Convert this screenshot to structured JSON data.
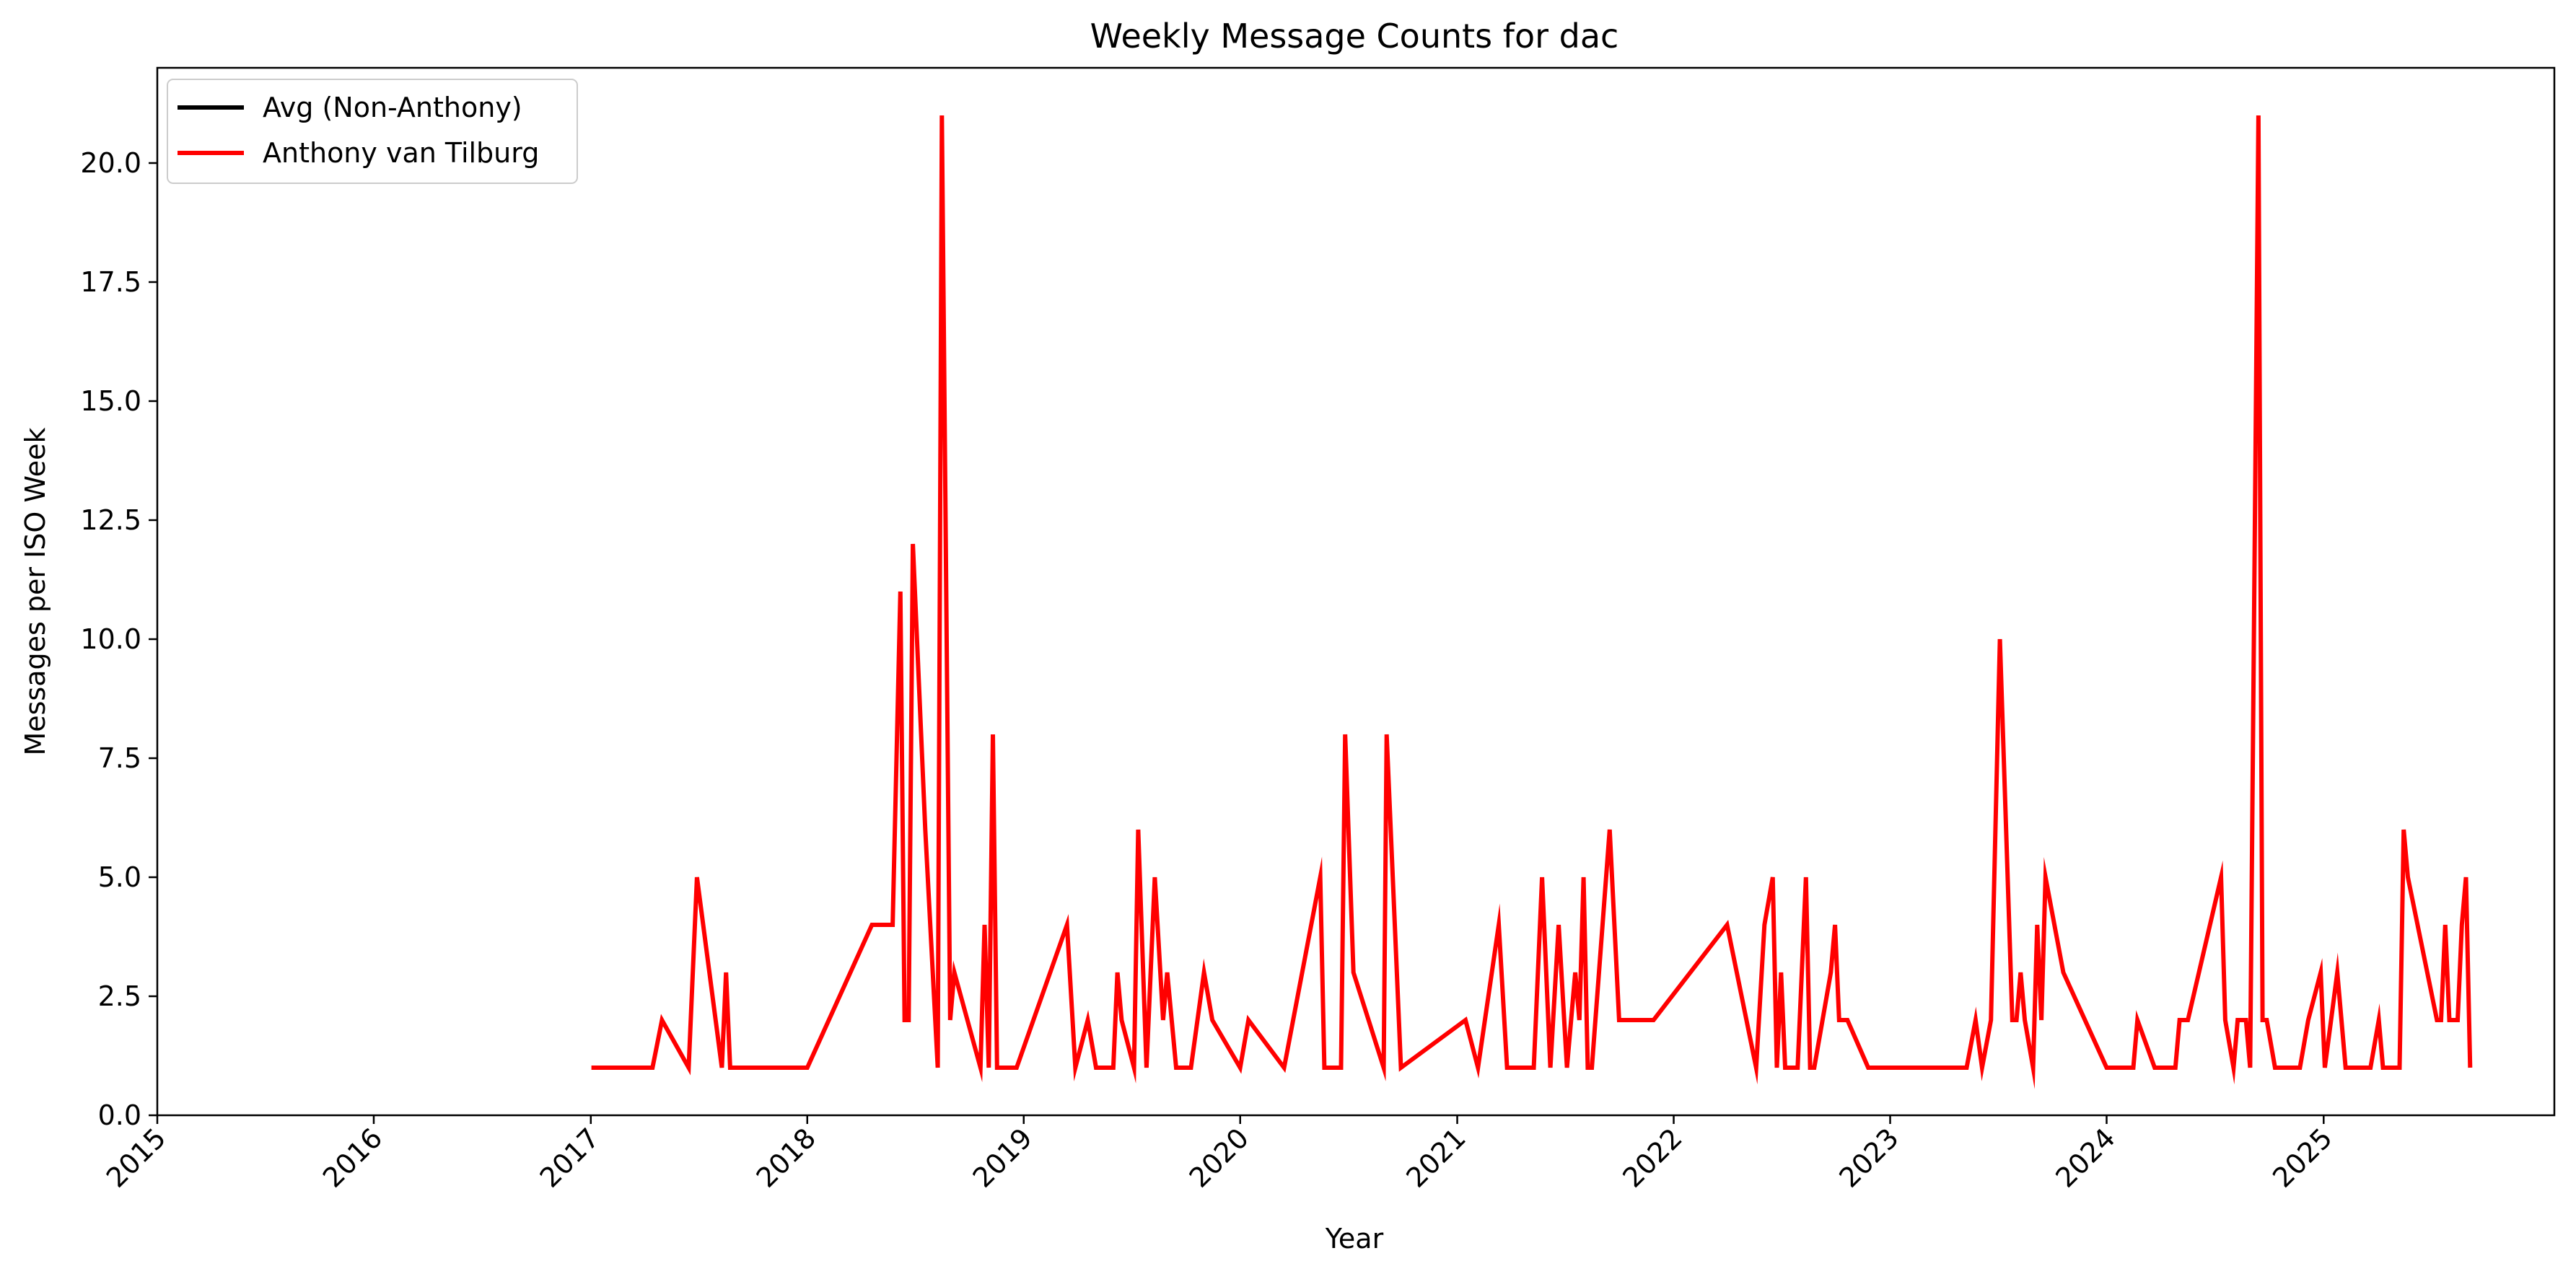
{
  "chart_data": {
    "type": "line",
    "title": "Weekly Message Counts for dac",
    "xlabel": "Year",
    "ylabel": "Messages per ISO Week",
    "xlim": [
      "2015-01-01",
      "2026-01-25"
    ],
    "ylim": [
      0,
      22
    ],
    "x_ticks": [
      "2015",
      "2016",
      "2017",
      "2018",
      "2019",
      "2020",
      "2021",
      "2022",
      "2023",
      "2024",
      "2025"
    ],
    "y_ticks": [
      "0.0",
      "2.5",
      "5.0",
      "7.5",
      "10.0",
      "12.5",
      "15.0",
      "17.5",
      "20.0"
    ],
    "grid": false,
    "legend_position": "upper-left",
    "legend": [
      {
        "name": "Avg (Non-Anthony)",
        "color": "#000000"
      },
      {
        "name": "Anthony van Tilburg",
        "color": "#ff0000"
      }
    ],
    "series": [
      {
        "name": "Avg (Non-Anthony)",
        "color": "#000000",
        "points": []
      },
      {
        "name": "Anthony van Tilburg",
        "color": "#ff0000",
        "points": [
          [
            "2017-01-02",
            1
          ],
          [
            "2017-04-15",
            1
          ],
          [
            "2017-05-01",
            2
          ],
          [
            "2017-06-15",
            1
          ],
          [
            "2017-06-29",
            5
          ],
          [
            "2017-08-10",
            1
          ],
          [
            "2017-08-17",
            3
          ],
          [
            "2017-08-24",
            1
          ],
          [
            "2018-01-01",
            1
          ],
          [
            "2018-04-20",
            4
          ],
          [
            "2018-05-25",
            4
          ],
          [
            "2018-06-07",
            11
          ],
          [
            "2018-06-14",
            2
          ],
          [
            "2018-06-21",
            2
          ],
          [
            "2018-06-28",
            12
          ],
          [
            "2018-07-19",
            6
          ],
          [
            "2018-08-09",
            1
          ],
          [
            "2018-08-16",
            21
          ],
          [
            "2018-08-30",
            2
          ],
          [
            "2018-09-06",
            3
          ],
          [
            "2018-10-20",
            1
          ],
          [
            "2018-10-27",
            4
          ],
          [
            "2018-11-03",
            1
          ],
          [
            "2018-11-10",
            8
          ],
          [
            "2018-11-17",
            1
          ],
          [
            "2018-12-20",
            1
          ],
          [
            "2019-03-15",
            4
          ],
          [
            "2019-03-29",
            1
          ],
          [
            "2019-04-19",
            2
          ],
          [
            "2019-05-03",
            1
          ],
          [
            "2019-06-01",
            1
          ],
          [
            "2019-06-08",
            3
          ],
          [
            "2019-06-15",
            2
          ],
          [
            "2019-07-06",
            1
          ],
          [
            "2019-07-13",
            6
          ],
          [
            "2019-07-27",
            1
          ],
          [
            "2019-08-10",
            5
          ],
          [
            "2019-08-24",
            2
          ],
          [
            "2019-08-31",
            3
          ],
          [
            "2019-09-15",
            1
          ],
          [
            "2019-10-10",
            1
          ],
          [
            "2019-11-01",
            3
          ],
          [
            "2019-11-15",
            2
          ],
          [
            "2020-01-01",
            1
          ],
          [
            "2020-01-15",
            2
          ],
          [
            "2020-03-15",
            1
          ],
          [
            "2020-05-15",
            5
          ],
          [
            "2020-05-22",
            1
          ],
          [
            "2020-06-19",
            1
          ],
          [
            "2020-06-26",
            8
          ],
          [
            "2020-07-10",
            3
          ],
          [
            "2020-08-30",
            1
          ],
          [
            "2020-09-04",
            8
          ],
          [
            "2020-09-28",
            1
          ],
          [
            "2021-01-15",
            2
          ],
          [
            "2021-02-05",
            1
          ],
          [
            "2021-03-12",
            4
          ],
          [
            "2021-03-26",
            1
          ],
          [
            "2021-05-10",
            1
          ],
          [
            "2021-05-24",
            5
          ],
          [
            "2021-06-07",
            1
          ],
          [
            "2021-06-21",
            4
          ],
          [
            "2021-07-05",
            1
          ],
          [
            "2021-07-19",
            3
          ],
          [
            "2021-07-26",
            2
          ],
          [
            "2021-08-02",
            5
          ],
          [
            "2021-08-09",
            1
          ],
          [
            "2021-08-16",
            1
          ],
          [
            "2021-09-15",
            6
          ],
          [
            "2021-10-01",
            2
          ],
          [
            "2021-11-28",
            2
          ],
          [
            "2022-04-01",
            4
          ],
          [
            "2022-05-20",
            1
          ],
          [
            "2022-06-03",
            4
          ],
          [
            "2022-06-17",
            5
          ],
          [
            "2022-06-24",
            1
          ],
          [
            "2022-07-01",
            3
          ],
          [
            "2022-07-08",
            1
          ],
          [
            "2022-07-29",
            1
          ],
          [
            "2022-08-12",
            5
          ],
          [
            "2022-08-19",
            1
          ],
          [
            "2022-08-26",
            1
          ],
          [
            "2022-09-23",
            3
          ],
          [
            "2022-09-30",
            4
          ],
          [
            "2022-10-07",
            2
          ],
          [
            "2022-10-21",
            2
          ],
          [
            "2022-11-25",
            1
          ],
          [
            "2023-05-10",
            1
          ],
          [
            "2023-05-25",
            2
          ],
          [
            "2023-06-05",
            1
          ],
          [
            "2023-06-20",
            2
          ],
          [
            "2023-07-05",
            10
          ],
          [
            "2023-07-26",
            2
          ],
          [
            "2023-08-02",
            2
          ],
          [
            "2023-08-09",
            3
          ],
          [
            "2023-08-16",
            2
          ],
          [
            "2023-08-30",
            1
          ],
          [
            "2023-09-06",
            4
          ],
          [
            "2023-09-13",
            2
          ],
          [
            "2023-09-20",
            5
          ],
          [
            "2023-10-20",
            3
          ],
          [
            "2024-01-01",
            1
          ],
          [
            "2024-02-15",
            1
          ],
          [
            "2024-02-22",
            2
          ],
          [
            "2024-03-22",
            1
          ],
          [
            "2024-04-26",
            1
          ],
          [
            "2024-05-03",
            2
          ],
          [
            "2024-05-17",
            2
          ],
          [
            "2024-07-12",
            5
          ],
          [
            "2024-07-19",
            2
          ],
          [
            "2024-08-02",
            1
          ],
          [
            "2024-08-09",
            2
          ],
          [
            "2024-08-23",
            2
          ],
          [
            "2024-08-30",
            1
          ],
          [
            "2024-09-13",
            21
          ],
          [
            "2024-09-20",
            2
          ],
          [
            "2024-09-27",
            2
          ],
          [
            "2024-10-11",
            1
          ],
          [
            "2024-11-22",
            1
          ],
          [
            "2024-12-06",
            2
          ],
          [
            "2024-12-27",
            3
          ],
          [
            "2025-01-03",
            1
          ],
          [
            "2025-01-24",
            3
          ],
          [
            "2025-02-07",
            1
          ],
          [
            "2025-03-21",
            1
          ],
          [
            "2025-04-04",
            2
          ],
          [
            "2025-04-11",
            1
          ],
          [
            "2025-05-09",
            1
          ],
          [
            "2025-05-16",
            6
          ],
          [
            "2025-05-23",
            5
          ],
          [
            "2025-07-11",
            2
          ],
          [
            "2025-07-18",
            2
          ],
          [
            "2025-07-25",
            4
          ],
          [
            "2025-08-01",
            2
          ],
          [
            "2025-08-15",
            2
          ],
          [
            "2025-08-22",
            4
          ],
          [
            "2025-08-29",
            5
          ],
          [
            "2025-09-05",
            1
          ]
        ]
      }
    ]
  }
}
